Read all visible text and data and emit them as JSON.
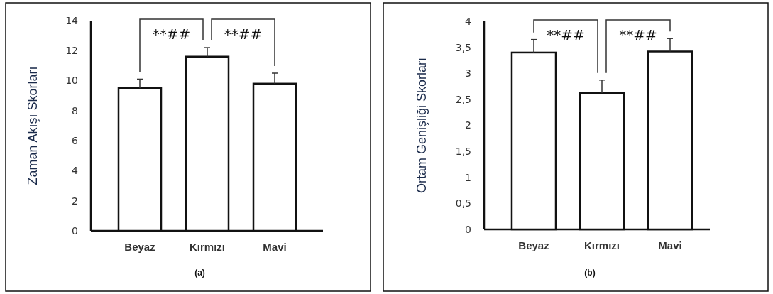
{
  "chart_data": [
    {
      "type": "bar",
      "ylabel": "Zaman Akışı Skorları",
      "categories": [
        "Beyaz",
        "Kırmızı",
        "Mavi"
      ],
      "values": [
        9.5,
        11.6,
        9.8
      ],
      "errors": [
        0.6,
        0.6,
        0.7
      ],
      "color": "#ffffff",
      "ylim": [
        0,
        14
      ],
      "yticks": [
        0,
        2,
        4,
        6,
        8,
        10,
        12,
        14
      ],
      "annotations": [
        "**##",
        "**##",
        "(a)"
      ]
    },
    {
      "type": "bar",
      "ylabel": "Ortam Genişliği Skorları",
      "categories": [
        "Beyaz",
        "Kırmızı",
        "Mavi"
      ],
      "values": [
        3.4,
        2.62,
        3.42
      ],
      "errors": [
        0.25,
        0.25,
        0.25
      ],
      "color": "#ffffff",
      "ylim": [
        0,
        4
      ],
      "yticks": [
        0,
        {
          "value": 0.5,
          "label": "0,5"
        },
        1,
        {
          "value": 1.5,
          "label": "1,5"
        },
        2,
        {
          "value": 2.5,
          "label": "2,5"
        },
        3,
        {
          "value": 3.5,
          "label": "3,5"
        },
        4
      ],
      "annotations": [
        "**##",
        "**##",
        "(b)"
      ]
    }
  ]
}
